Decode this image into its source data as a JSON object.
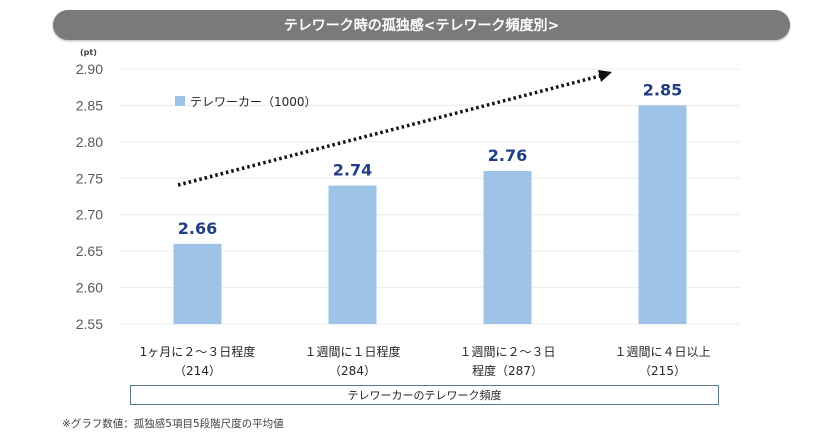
{
  "chart_data": {
    "type": "bar",
    "title": "テレワーク時の孤独感<テレワーク頻度別>",
    "ylabel": "(pt)",
    "xlabel": "テレワーカーのテレワーク頻度",
    "ylim": [
      2.55,
      2.9
    ],
    "yticks": [
      2.9,
      2.85,
      2.8,
      2.75,
      2.7,
      2.65,
      2.6,
      2.55
    ],
    "ytick_labels": [
      "2.90",
      "2.85",
      "2.80",
      "2.75",
      "2.70",
      "2.65",
      "2.60",
      "2.55"
    ],
    "grid": true,
    "legend": {
      "position": "top-left",
      "entries": [
        "テレワーカー（1000）"
      ]
    },
    "categories": [
      [
        "1ヶ月に２～３日程度",
        "（214）"
      ],
      [
        "１週間に１日程度",
        "（284）"
      ],
      [
        "１週間に２～３日",
        "程度（287）"
      ],
      [
        "１週間に４日以上",
        "（215）"
      ]
    ],
    "series": [
      {
        "name": "テレワーカー（1000）",
        "values": [
          2.66,
          2.74,
          2.76,
          2.85
        ],
        "color": "#9dc3e6"
      }
    ],
    "data_labels": [
      "2.66",
      "2.74",
      "2.76",
      "2.85"
    ],
    "annotations": [
      {
        "type": "dotted-trend-arrow",
        "description": "upward trend arrow"
      }
    ],
    "footnote": "※グラフ数値：孤独感5項目5段階尺度の平均値"
  },
  "colors": {
    "bar": "#9dc3e6",
    "data_label": "#1f3e84",
    "title_bg": "#7a7a7a",
    "grid": "#ececec"
  }
}
